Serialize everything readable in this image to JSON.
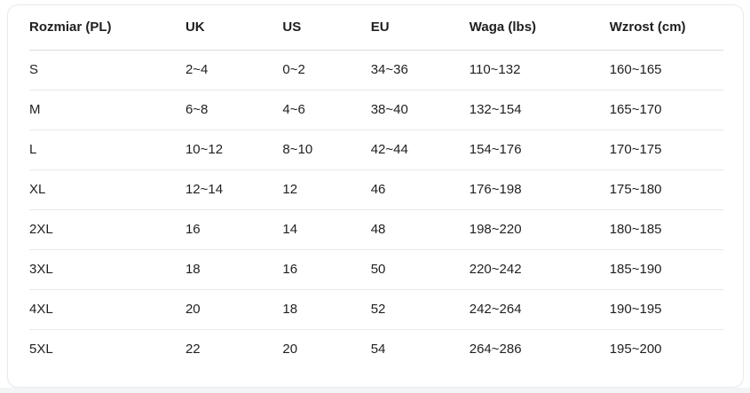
{
  "table": {
    "columns": [
      "Rozmiar (PL)",
      "UK",
      "US",
      "EU",
      "Waga (lbs)",
      "Wzrost (cm)"
    ],
    "rows": [
      [
        "S",
        "2~4",
        "0~2",
        "34~36",
        "110~132",
        "160~165"
      ],
      [
        "M",
        "6~8",
        "4~6",
        "38~40",
        "132~154",
        "165~170"
      ],
      [
        "L",
        "10~12",
        "8~10",
        "42~44",
        "154~176",
        "170~175"
      ],
      [
        "XL",
        "12~14",
        "12",
        "46",
        "176~198",
        "175~180"
      ],
      [
        "2XL",
        "16",
        "14",
        "48",
        "198~220",
        "180~185"
      ],
      [
        "3XL",
        "18",
        "16",
        "50",
        "220~242",
        "185~190"
      ],
      [
        "4XL",
        "20",
        "18",
        "52",
        "242~264",
        "190~195"
      ],
      [
        "5XL",
        "22",
        "20",
        "54",
        "264~286",
        "195~200"
      ]
    ]
  },
  "colors": {
    "text": "#1f1f1f",
    "card_border": "#e9eaec",
    "header_divider": "#d9dbde",
    "row_divider": "#e8e9eb",
    "card_background": "#ffffff",
    "page_bottom_strip": "#f3f4f6"
  }
}
